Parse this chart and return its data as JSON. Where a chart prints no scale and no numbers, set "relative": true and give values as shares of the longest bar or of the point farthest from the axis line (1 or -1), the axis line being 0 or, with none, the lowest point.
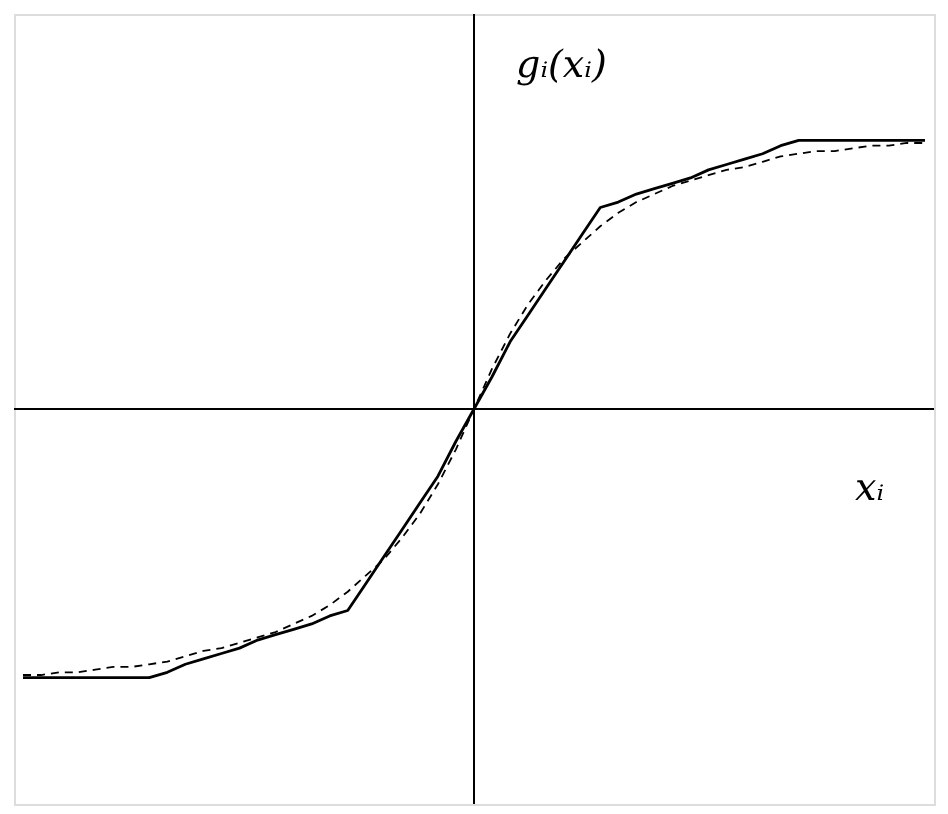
{
  "chart_data": {
    "type": "line",
    "relative": true,
    "xlabel": "xᵢ",
    "ylabel": "gᵢ(xᵢ)",
    "grid": false,
    "categories": [
      null,
      null,
      null,
      null,
      null,
      null,
      null,
      null,
      null,
      null,
      null,
      null,
      null,
      null,
      null,
      null,
      null,
      null,
      null,
      null,
      null,
      null,
      null,
      null,
      null,
      null,
      null,
      null,
      null,
      null,
      null,
      null,
      null,
      null,
      null,
      null,
      null,
      null,
      null,
      null,
      null,
      null,
      null,
      null,
      null,
      null,
      null,
      null,
      null,
      null,
      null
    ],
    "series": [
      {
        "color": "#000000",
        "line_style": "solid",
        "values": [
          -1,
          -1,
          -1,
          -1,
          -1,
          -1,
          -1,
          -1,
          -0.98,
          -0.95,
          -0.93,
          -0.91,
          -0.89,
          -0.86,
          -0.84,
          -0.82,
          -0.8,
          -0.77,
          -0.75,
          -0.65,
          -0.55,
          -0.45,
          -0.35,
          -0.25,
          -0.12,
          0,
          0.12,
          0.25,
          0.35,
          0.45,
          0.55,
          0.65,
          0.75,
          0.77,
          0.8,
          0.82,
          0.84,
          0.86,
          0.89,
          0.91,
          0.93,
          0.95,
          0.98,
          1,
          1,
          1,
          1,
          1,
          1,
          1,
          1
        ]
      },
      {
        "color": "#000000",
        "line_style": "dashed",
        "values": [
          -0.99,
          -0.99,
          -0.98,
          -0.98,
          -0.97,
          -0.96,
          -0.96,
          -0.95,
          -0.94,
          -0.92,
          -0.9,
          -0.89,
          -0.87,
          -0.85,
          -0.83,
          -0.8,
          -0.77,
          -0.73,
          -0.68,
          -0.62,
          -0.56,
          -0.48,
          -0.39,
          -0.28,
          -0.15,
          0,
          0.15,
          0.28,
          0.39,
          0.48,
          0.56,
          0.62,
          0.68,
          0.73,
          0.77,
          0.8,
          0.83,
          0.85,
          0.87,
          0.89,
          0.9,
          0.92,
          0.94,
          0.95,
          0.96,
          0.96,
          0.97,
          0.98,
          0.98,
          0.99,
          0.99
        ]
      }
    ]
  }
}
